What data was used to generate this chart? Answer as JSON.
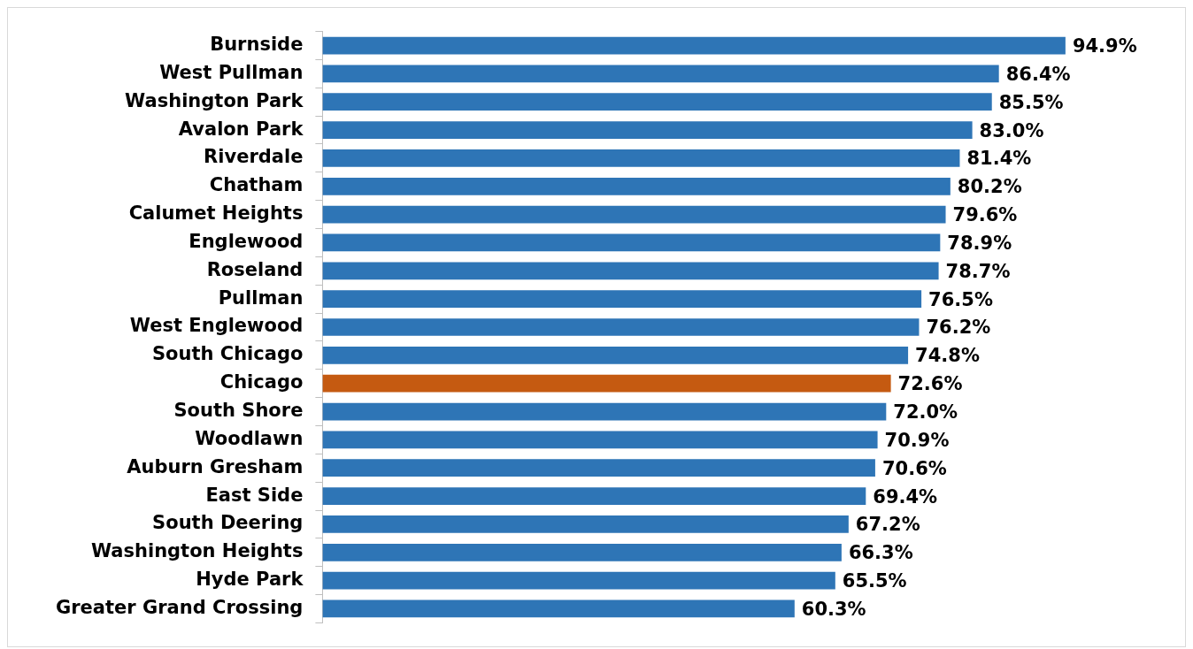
{
  "chart_data": {
    "type": "bar",
    "orientation": "horizontal",
    "categories": [
      "Burnside",
      "West Pullman",
      "Washington Park",
      "Avalon Park",
      "Riverdale",
      "Chatham",
      "Calumet Heights",
      "Englewood",
      "Roseland",
      "Pullman",
      "West Englewood",
      "South Chicago",
      "Chicago",
      "South Shore",
      "Woodlawn",
      "Auburn Gresham",
      "East Side",
      "South Deering",
      "Washington Heights",
      "Hyde Park",
      "Greater Grand Crossing"
    ],
    "values": [
      94.9,
      86.4,
      85.5,
      83.0,
      81.4,
      80.2,
      79.6,
      78.9,
      78.7,
      76.5,
      76.2,
      74.8,
      72.6,
      72.0,
      70.9,
      70.6,
      69.4,
      67.2,
      66.3,
      65.5,
      60.3
    ],
    "colors": [
      "#2e75b6",
      "#2e75b6",
      "#2e75b6",
      "#2e75b6",
      "#2e75b6",
      "#2e75b6",
      "#2e75b6",
      "#2e75b6",
      "#2e75b6",
      "#2e75b6",
      "#2e75b6",
      "#2e75b6",
      "#c55a11",
      "#2e75b6",
      "#2e75b6",
      "#2e75b6",
      "#2e75b6",
      "#2e75b6",
      "#2e75b6",
      "#2e75b6",
      "#2e75b6"
    ],
    "value_labels": [
      "94.9%",
      "86.4%",
      "85.5%",
      "83.0%",
      "81.4%",
      "80.2%",
      "79.6%",
      "78.9%",
      "78.7%",
      "76.5%",
      "76.2%",
      "74.8%",
      "72.6%",
      "72.0%",
      "70.9%",
      "70.6%",
      "69.4%",
      "67.2%",
      "66.3%",
      "65.5%",
      "60.3%"
    ],
    "grid": false,
    "legend": false
  }
}
